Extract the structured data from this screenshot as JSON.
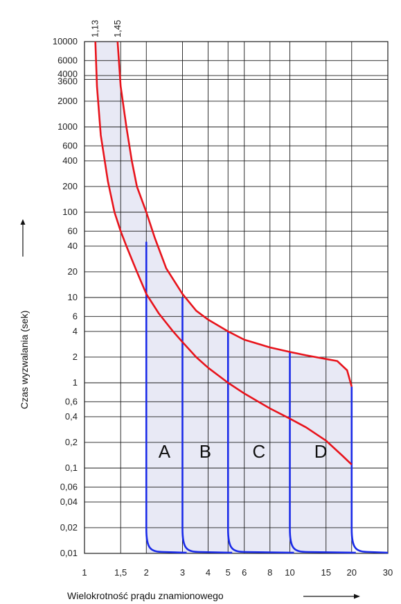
{
  "chart_data": {
    "type": "line",
    "title": "",
    "xlabel": "Wielokrotność prądu znamionowego",
    "ylabel": "Czas wyzwalania (sek)",
    "x_scale": "log",
    "y_scale": "log",
    "xlim": [
      1,
      30
    ],
    "ylim": [
      0.01,
      10000
    ],
    "grid": true,
    "x_tick_labels": [
      {
        "v": 1,
        "t": "1"
      },
      {
        "v": 1.5,
        "t": "1,5"
      },
      {
        "v": 2,
        "t": "2"
      },
      {
        "v": 3,
        "t": "3"
      },
      {
        "v": 4,
        "t": "4"
      },
      {
        "v": 5,
        "t": "5"
      },
      {
        "v": 6,
        "t": "6"
      },
      {
        "v": 8,
        "t": "8"
      },
      {
        "v": 10,
        "t": "10"
      },
      {
        "v": 15,
        "t": "15"
      },
      {
        "v": 20,
        "t": "20"
      },
      {
        "v": 30,
        "t": "30"
      }
    ],
    "x_top_tick_labels": [
      {
        "v": 1.13,
        "t": "1,13"
      },
      {
        "v": 1.45,
        "t": "1,45"
      }
    ],
    "y_tick_labels": [
      {
        "v": 10000,
        "t": "10000"
      },
      {
        "v": 6000,
        "t": "6000"
      },
      {
        "v": 4000,
        "t": "4000"
      },
      {
        "v": 3600,
        "t": "3600"
      },
      {
        "v": 2000,
        "t": "2000"
      },
      {
        "v": 1000,
        "t": "1000"
      },
      {
        "v": 600,
        "t": "600"
      },
      {
        "v": 400,
        "t": "400"
      },
      {
        "v": 200,
        "t": "200"
      },
      {
        "v": 100,
        "t": "100"
      },
      {
        "v": 60,
        "t": "60"
      },
      {
        "v": 40,
        "t": "40"
      },
      {
        "v": 20,
        "t": "20"
      },
      {
        "v": 10,
        "t": "10"
      },
      {
        "v": 6,
        "t": "6"
      },
      {
        "v": 4,
        "t": "4"
      },
      {
        "v": 2,
        "t": "2"
      },
      {
        "v": 1,
        "t": "1"
      },
      {
        "v": 0.6,
        "t": "0,6"
      },
      {
        "v": 0.4,
        "t": "0,4"
      },
      {
        "v": 0.2,
        "t": "0,2"
      },
      {
        "v": 0.1,
        "t": "0,1"
      },
      {
        "v": 0.06,
        "t": "0,06"
      },
      {
        "v": 0.04,
        "t": "0,04"
      },
      {
        "v": 0.02,
        "t": "0,02"
      },
      {
        "v": 0.01,
        "t": "0,01"
      }
    ],
    "x_grid_values": [
      1.5,
      2,
      3,
      4,
      5,
      6,
      8,
      10,
      15,
      20
    ],
    "y_grid_values": [
      10000,
      6000,
      4000,
      3600,
      2000,
      1000,
      600,
      400,
      200,
      100,
      60,
      40,
      20,
      10,
      6,
      4,
      2,
      1,
      0.6,
      0.4,
      0.2,
      0.1,
      0.06,
      0.04,
      0.02,
      0.01
    ],
    "series": [
      {
        "color": "#e8131b",
        "x": [
          1.45,
          1.5,
          1.6,
          1.7,
          1.8,
          2,
          2.2,
          2.5,
          3,
          3.5,
          4,
          5,
          6,
          8,
          10,
          12,
          15,
          17,
          19,
          20
        ],
        "y": [
          10000,
          3000,
          1000,
          400,
          200,
          100,
          50,
          22,
          11,
          7,
          5.5,
          4,
          3.2,
          2.6,
          2.3,
          2.1,
          1.9,
          1.8,
          1.4,
          0.9
        ]
      },
      {
        "color": "#e8131b",
        "x": [
          1.13,
          1.15,
          1.2,
          1.3,
          1.4,
          1.5,
          1.6,
          1.8,
          2,
          2.3,
          2.7,
          3,
          3.5,
          4,
          5,
          6,
          8,
          10,
          12,
          15,
          18,
          20
        ],
        "y": [
          10000,
          3000,
          800,
          230,
          100,
          60,
          40,
          20,
          11,
          6.5,
          4,
          3,
          2,
          1.5,
          1,
          0.75,
          0.5,
          0.38,
          0.3,
          0.21,
          0.14,
          0.11
        ]
      }
    ],
    "bands": [
      {
        "name": "A",
        "x_min": 2,
        "x_max": 3,
        "y_upper": 45,
        "y_lower": 10
      },
      {
        "name": "B",
        "x_min": 3,
        "x_max": 5,
        "y_upper": 10,
        "y_lower": 3
      },
      {
        "name": "C",
        "x_min": 5,
        "x_max": 10,
        "y_upper": 4,
        "y_lower": 1
      },
      {
        "name": "D",
        "x_min": 10,
        "x_max": 20,
        "y_upper": 2.3,
        "y_lower": 0.38
      }
    ],
    "band_color": "#1a2be8",
    "fill_color": "#e8e9f5"
  }
}
